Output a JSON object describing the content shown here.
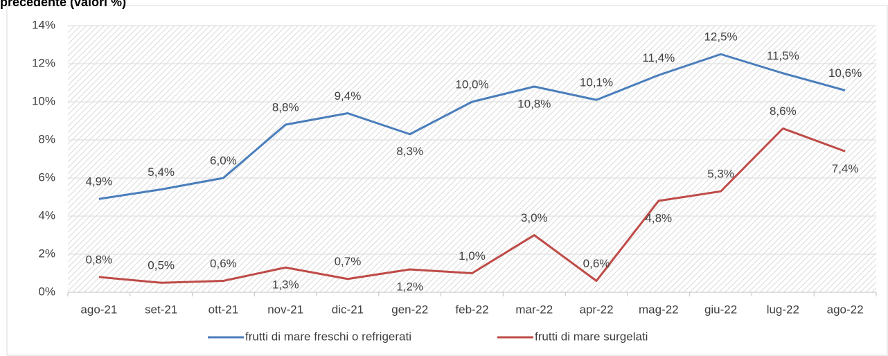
{
  "chart_data": {
    "type": "line",
    "title": "precedente (valori %)",
    "categories": [
      "ago-21",
      "set-21",
      "ott-21",
      "nov-21",
      "dic-21",
      "gen-22",
      "feb-22",
      "mar-22",
      "apr-22",
      "mag-22",
      "giu-22",
      "lug-22",
      "ago-22"
    ],
    "series": [
      {
        "name": "frutti di mare freschi o refrigerati",
        "color": "#4a7ebb",
        "values": [
          4.9,
          5.4,
          6.0,
          8.8,
          9.4,
          8.3,
          10.0,
          10.8,
          10.1,
          11.4,
          12.5,
          11.5,
          10.6
        ],
        "value_labels": [
          "4,9%",
          "5,4%",
          "6,0%",
          "8,8%",
          "9,4%",
          "8,3%",
          "10,0%",
          "10,8%",
          "10,1%",
          "11,4%",
          "12,5%",
          "11,5%",
          "10,6%"
        ]
      },
      {
        "name": "frutti di mare surgelati",
        "color": "#be4b48",
        "values": [
          0.8,
          0.5,
          0.6,
          1.3,
          0.7,
          1.2,
          1.0,
          3.0,
          0.6,
          4.8,
          5.3,
          8.6,
          7.4
        ],
        "value_labels": [
          "0,8%",
          "0,5%",
          "0,6%",
          "1,3%",
          "0,7%",
          "1,2%",
          "1,0%",
          "3,0%",
          "0,6%",
          "4,8%",
          "5,3%",
          "8,6%",
          "7,4%"
        ]
      }
    ],
    "ylim": [
      0,
      14
    ],
    "yticks": [
      {
        "value": 0,
        "label": "0%"
      },
      {
        "value": 2,
        "label": "2%"
      },
      {
        "value": 4,
        "label": "4%"
      },
      {
        "value": 6,
        "label": "6%"
      },
      {
        "value": 8,
        "label": "8%"
      },
      {
        "value": 10,
        "label": "10%"
      },
      {
        "value": 12,
        "label": "12%"
      },
      {
        "value": 14,
        "label": "14%"
      }
    ],
    "grid": true
  }
}
